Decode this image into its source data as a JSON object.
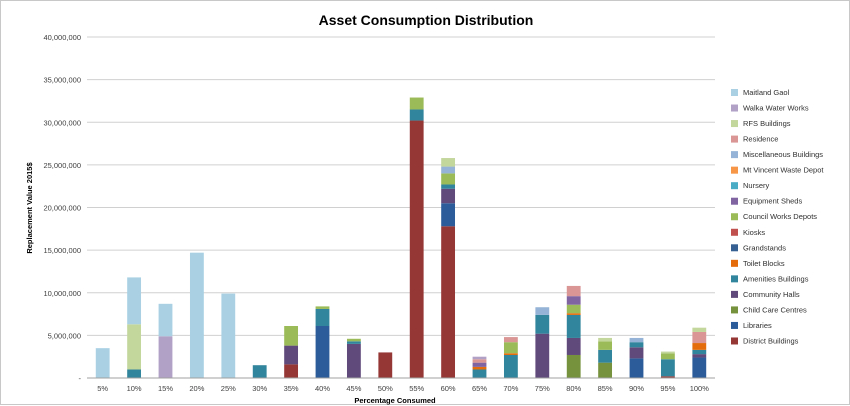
{
  "chart_data": {
    "type": "bar",
    "stacked": true,
    "title": "Asset Consumption Distribution",
    "xlabel": "Percentage Consumed",
    "ylabel": "Replacement Value 2015$",
    "ylim": [
      0,
      40000000
    ],
    "yticks": [
      "-",
      "5,000,000",
      "10,000,000",
      "15,000,000",
      "20,000,000",
      "25,000,000",
      "30,000,000",
      "35,000,000",
      "40,000,000"
    ],
    "grid": true,
    "legend_position": "right",
    "categories": [
      "5%",
      "10%",
      "15%",
      "20%",
      "25%",
      "30%",
      "35%",
      "40%",
      "45%",
      "50%",
      "55%",
      "60%",
      "65%",
      "70%",
      "75%",
      "80%",
      "85%",
      "90%",
      "95%",
      "100%"
    ],
    "series": [
      {
        "name": "District Buildings",
        "color": "#953735",
        "values": [
          0,
          0,
          0,
          0,
          0,
          0,
          1600000,
          0,
          0,
          3000000,
          30200000,
          17800000,
          0,
          0,
          0,
          0,
          0,
          0,
          200000,
          0
        ]
      },
      {
        "name": "Libraries",
        "color": "#2c5d9a",
        "values": [
          0,
          0,
          0,
          0,
          0,
          0,
          0,
          6100000,
          0,
          0,
          0,
          2700000,
          0,
          0,
          0,
          0,
          0,
          2300000,
          0,
          2400000
        ]
      },
      {
        "name": "Child Care Centres",
        "color": "#76923c",
        "values": [
          0,
          0,
          0,
          0,
          0,
          0,
          0,
          0,
          0,
          0,
          0,
          0,
          0,
          0,
          0,
          2700000,
          1800000,
          0,
          0,
          0
        ]
      },
      {
        "name": "Community Halls",
        "color": "#604a7b",
        "values": [
          0,
          0,
          0,
          0,
          0,
          0,
          2200000,
          0,
          4000000,
          0,
          0,
          1700000,
          0,
          0,
          5200000,
          2000000,
          0,
          1300000,
          0,
          400000
        ]
      },
      {
        "name": "Amenities Buildings",
        "color": "#31859c",
        "values": [
          0,
          1000000,
          0,
          0,
          0,
          1500000,
          0,
          2000000,
          300000,
          0,
          1300000,
          500000,
          1000000,
          2700000,
          2200000,
          2700000,
          1500000,
          600000,
          2000000,
          500000
        ]
      },
      {
        "name": "Toilet Blocks",
        "color": "#e46c0a",
        "values": [
          0,
          0,
          0,
          0,
          0,
          0,
          0,
          0,
          0,
          0,
          0,
          0,
          300000,
          200000,
          0,
          200000,
          0,
          0,
          0,
          800000
        ]
      },
      {
        "name": "Grandstands",
        "color": "#366092",
        "values": [
          0,
          0,
          0,
          0,
          0,
          0,
          0,
          0,
          0,
          0,
          0,
          0,
          0,
          0,
          0,
          0,
          0,
          0,
          0,
          0
        ]
      },
      {
        "name": "Kiosks",
        "color": "#c0504d",
        "values": [
          0,
          0,
          0,
          0,
          0,
          0,
          0,
          0,
          0,
          0,
          0,
          0,
          0,
          0,
          0,
          0,
          0,
          0,
          0,
          0
        ]
      },
      {
        "name": "Council Works Depots",
        "color": "#9bbb59",
        "values": [
          0,
          0,
          0,
          0,
          0,
          0,
          2300000,
          300000,
          300000,
          0,
          1400000,
          1300000,
          0,
          1300000,
          0,
          1000000,
          1000000,
          0,
          700000,
          0
        ]
      },
      {
        "name": "Equipment Sheds",
        "color": "#8064a2",
        "values": [
          0,
          0,
          0,
          0,
          0,
          0,
          0,
          0,
          0,
          0,
          0,
          0,
          500000,
          0,
          0,
          1000000,
          0,
          0,
          0,
          0
        ]
      },
      {
        "name": "Nursery",
        "color": "#4bacc6",
        "values": [
          0,
          0,
          0,
          0,
          0,
          0,
          0,
          0,
          0,
          0,
          0,
          0,
          0,
          0,
          0,
          0,
          0,
          0,
          0,
          0
        ]
      },
      {
        "name": "Mt Vincent Waste Depot",
        "color": "#f79646",
        "values": [
          0,
          0,
          0,
          0,
          0,
          0,
          0,
          0,
          0,
          0,
          0,
          0,
          0,
          0,
          0,
          0,
          0,
          0,
          0,
          0
        ]
      },
      {
        "name": "Miscellaneous Buildings",
        "color": "#95b3d7",
        "values": [
          0,
          0,
          0,
          0,
          0,
          0,
          0,
          0,
          0,
          0,
          0,
          800000,
          0,
          0,
          900000,
          0,
          0,
          500000,
          0,
          0
        ]
      },
      {
        "name": "Residence",
        "color": "#d99694",
        "values": [
          0,
          0,
          0,
          0,
          0,
          0,
          0,
          0,
          0,
          0,
          0,
          0,
          400000,
          600000,
          0,
          1200000,
          0,
          0,
          0,
          1300000
        ]
      },
      {
        "name": "RFS Buildings",
        "color": "#c3d69b",
        "values": [
          0,
          5300000,
          0,
          0,
          0,
          0,
          0,
          0,
          0,
          0,
          0,
          1000000,
          0,
          0,
          0,
          0,
          400000,
          0,
          200000,
          500000
        ]
      },
      {
        "name": "Walka Water Works",
        "color": "#b2a1c7",
        "values": [
          0,
          0,
          4900000,
          0,
          0,
          0,
          0,
          0,
          0,
          0,
          0,
          0,
          300000,
          0,
          0,
          0,
          0,
          0,
          0,
          0
        ]
      },
      {
        "name": "Maitland Gaol",
        "color": "#a9d1e3",
        "values": [
          3500000,
          5500000,
          3800000,
          14700000,
          9900000,
          0,
          0,
          0,
          0,
          0,
          0,
          0,
          0,
          0,
          0,
          0,
          0,
          0,
          0,
          0
        ]
      }
    ]
  }
}
